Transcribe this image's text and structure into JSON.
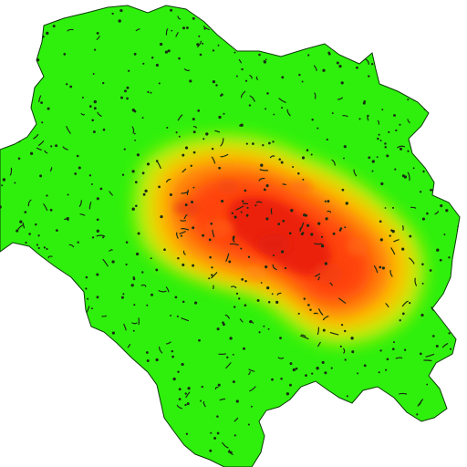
{
  "map": {
    "background_color": "#ffffff",
    "base_fill_color": "#2ef00c",
    "base_stroke_color": "#0c3a06",
    "dot_color": "#1a2a14",
    "heat_colors": {
      "low": "#c8ef10",
      "mid": "#ffc400",
      "high_orange": "#ff7a0a",
      "high_red": "#ff4010",
      "peak_red": "#e81e10"
    },
    "legend": null
  }
}
